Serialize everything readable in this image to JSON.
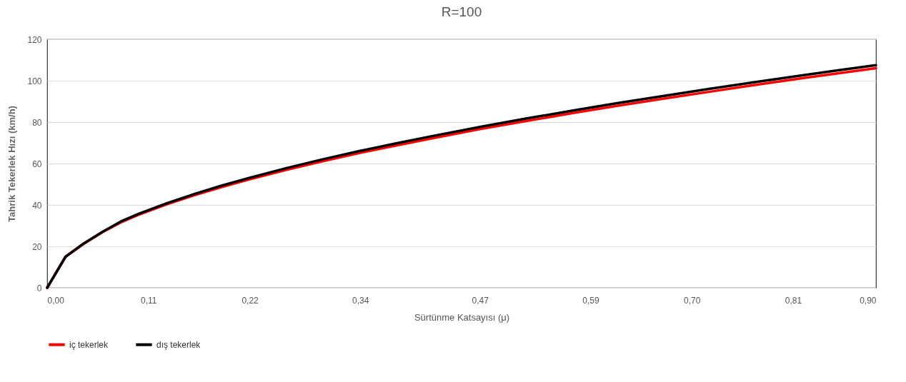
{
  "chart_data": {
    "type": "line",
    "title": "R=100",
    "xlabel": "Sürtünme Katsayısı (μ)",
    "ylabel": "Tahrik Tekerlek Hızı (km/h)",
    "x": [
      0,
      0.02,
      0.04,
      0.06,
      0.08,
      0.1,
      0.13,
      0.16,
      0.19,
      0.22,
      0.26,
      0.3,
      0.34,
      0.38,
      0.42,
      0.47,
      0.52,
      0.57,
      0.62,
      0.67,
      0.72,
      0.77,
      0.82,
      0.86,
      0.9
    ],
    "series": [
      {
        "name": "iç tekerlek",
        "color": "#ff0000",
        "values": [
          0,
          15,
          21.3,
          26.8,
          31.6,
          35.4,
          40.3,
          44.7,
          48.7,
          52.4,
          57,
          61.2,
          65.2,
          68.8,
          72.3,
          76.6,
          80.5,
          84.3,
          87.9,
          91.4,
          94.7,
          98,
          101.2,
          103.6,
          106
        ]
      },
      {
        "name": "dış tekerlek",
        "color": "#000000",
        "values": [
          0,
          15,
          21.5,
          27,
          32,
          35.8,
          40.8,
          45.3,
          49.4,
          53.1,
          57.8,
          62.1,
          66.1,
          69.8,
          73.4,
          77.7,
          81.7,
          85.5,
          89.2,
          92.7,
          96.1,
          99.4,
          102.6,
          105.1,
          107.5
        ]
      }
    ],
    "xlim": [
      0,
      0.9
    ],
    "xticks": [
      {
        "value": 0,
        "label": "0,00"
      },
      {
        "value": 0.11,
        "label": "0,11"
      },
      {
        "value": 0.22,
        "label": "0,22"
      },
      {
        "value": 0.34,
        "label": "0,34"
      },
      {
        "value": 0.47,
        "label": "0,47"
      },
      {
        "value": 0.59,
        "label": "0,59"
      },
      {
        "value": 0.7,
        "label": "0,70"
      },
      {
        "value": 0.81,
        "label": "0,81"
      },
      {
        "value": 0.9,
        "label": "0,90"
      }
    ],
    "ylim": [
      0,
      120
    ],
    "yticks": [
      0,
      20,
      40,
      60,
      80,
      100,
      120
    ],
    "grid": "y",
    "legend": "bottom",
    "marker": "none",
    "line_style": "solid"
  }
}
